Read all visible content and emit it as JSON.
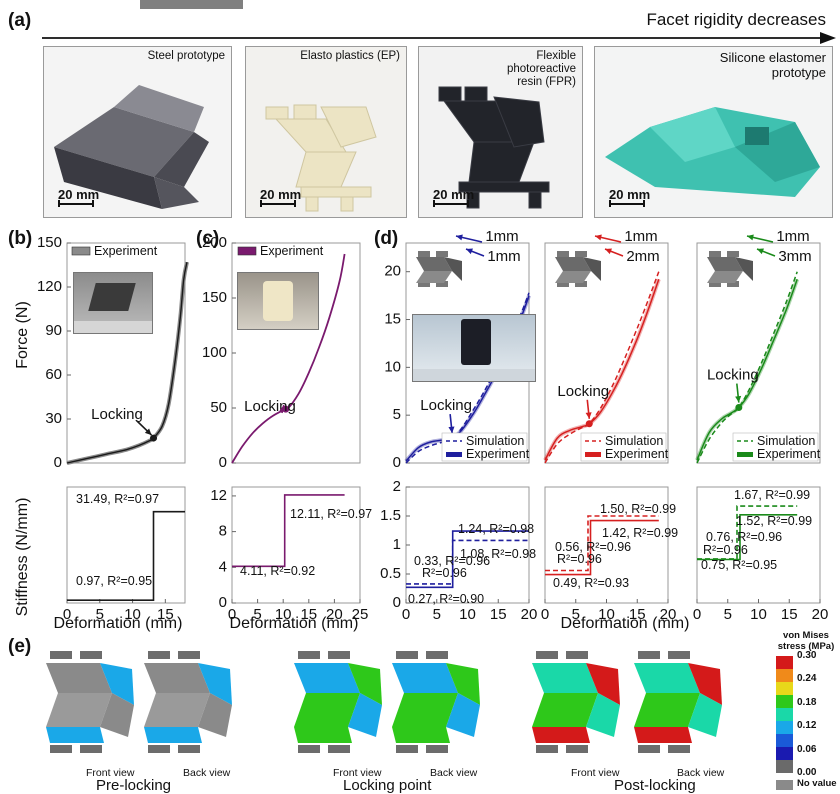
{
  "panel_labels": {
    "a": "(a)",
    "b": "(b)",
    "c": "(c)",
    "d": "(d)",
    "e": "(e)"
  },
  "arrow_caption": "Facet rigidity decreases",
  "photos": [
    {
      "caption": "Steel prototype",
      "scale": "20 mm"
    },
    {
      "caption": "Elasto plastics (EP)",
      "scale": "20 mm"
    },
    {
      "caption": "Flexible photoreactive resin (FPR)",
      "scale": "20 mm"
    },
    {
      "caption": "Silicone elastomer prototype",
      "scale": "20 mm"
    }
  ],
  "axis_titles": {
    "force": "Force (N)",
    "stiffness": "Stiffness (N/mm)",
    "deformation": "Deformation (mm)"
  },
  "legend": {
    "experiment": "Experiment",
    "simulation": "Simulation"
  },
  "annotations": {
    "locking": "Locking",
    "d1_top": "1mm",
    "d1_bot": "1mm",
    "d2_top": "1mm",
    "d2_bot": "2mm",
    "d3_top": "1mm",
    "d3_bot": "3mm"
  },
  "colors": {
    "b": "#1a1a1a",
    "c": "#7a1a6e",
    "d1": "#1f1f9e",
    "d2": "#d62020",
    "d3": "#1a8a1a"
  },
  "chart_data": [
    {
      "panel": "b-force",
      "type": "line",
      "xlim": [
        0,
        18
      ],
      "ylim": [
        0,
        150
      ],
      "yticks": [
        0,
        30,
        60,
        90,
        120,
        150
      ],
      "series": [
        {
          "name": "Experiment",
          "x": [
            0,
            3,
            6,
            9,
            11,
            12.5,
            13.2,
            14.5,
            15.5,
            16.5,
            17.3,
            17.8,
            18.3
          ],
          "y": [
            0,
            3,
            6,
            9,
            12,
            15,
            17,
            25,
            40,
            70,
            100,
            125,
            137
          ]
        }
      ],
      "locking_point": [
        13.2,
        17
      ]
    },
    {
      "panel": "b-stiffness",
      "type": "line",
      "xlim": [
        0,
        18
      ],
      "ylim": [
        0,
        40
      ],
      "series": [
        {
          "name": "Experiment",
          "x": [
            0,
            13.2,
            13.2,
            18
          ],
          "y": [
            0.97,
            0.97,
            31.49,
            31.49
          ]
        }
      ],
      "labels": [
        "31.49, R²=0.97",
        "0.97, R²=0.95"
      ]
    },
    {
      "panel": "c-force",
      "type": "line",
      "xlim": [
        0,
        25
      ],
      "ylim": [
        0,
        200
      ],
      "yticks": [
        0,
        50,
        100,
        150,
        200
      ],
      "series": [
        {
          "name": "Experiment",
          "x": [
            0,
            2,
            4,
            6,
            8,
            10,
            11,
            13,
            15,
            17,
            19,
            21,
            22
          ],
          "y": [
            0,
            15,
            27,
            36,
            43,
            48,
            50,
            63,
            82,
            105,
            132,
            165,
            190
          ]
        }
      ],
      "locking_point": [
        10.5,
        49
      ]
    },
    {
      "panel": "c-stiffness",
      "type": "line",
      "xlim": [
        0,
        25
      ],
      "ylim": [
        0,
        13
      ],
      "yticks": [
        0,
        4,
        8,
        12
      ],
      "series": [
        {
          "name": "Experiment",
          "x": [
            0,
            10.3,
            10.3,
            22
          ],
          "y": [
            4.11,
            4.11,
            12.11,
            12.11
          ]
        }
      ],
      "labels": [
        "12.11, R²=0.97",
        "4.11, R²=0.92"
      ]
    },
    {
      "panel": "d1-force",
      "type": "line",
      "xlim": [
        0,
        20
      ],
      "ylim": [
        0,
        23
      ],
      "yticks": [
        0,
        5,
        10,
        15,
        20
      ],
      "series": [
        {
          "name": "Experiment",
          "x": [
            0,
            2,
            4,
            6,
            7.5,
            9,
            11,
            13,
            15,
            17,
            19,
            20
          ],
          "y": [
            0.2,
            1.6,
            2.2,
            2.4,
            2.6,
            3.4,
            5.2,
            7.4,
            9.8,
            12.6,
            15.7,
            17.5
          ]
        },
        {
          "name": "Simulation",
          "x": [
            0,
            2,
            4,
            6,
            7.5,
            9,
            11,
            13,
            15,
            17,
            19,
            20
          ],
          "y": [
            0,
            1.2,
            1.8,
            2.2,
            2.6,
            3.6,
            5.6,
            7.8,
            10.3,
            13.1,
            16.1,
            17.8
          ]
        }
      ],
      "locking_point": [
        7.5,
        2.6
      ]
    },
    {
      "panel": "d1-stiffness",
      "type": "line",
      "xlim": [
        0,
        20
      ],
      "ylim": [
        0,
        2
      ],
      "yticks": [
        0,
        0.5,
        1,
        1.5,
        2
      ],
      "series": [
        {
          "name": "Experiment",
          "x": [
            0,
            7.6,
            7.6,
            20
          ],
          "y": [
            0.27,
            0.27,
            1.24,
            1.24
          ]
        },
        {
          "name": "Simulation",
          "x": [
            0,
            7.6,
            7.6,
            20
          ],
          "y": [
            0.33,
            0.33,
            1.08,
            1.08
          ]
        }
      ],
      "labels": [
        "1.24, R²=0.98",
        "1.08, R²=0.98",
        "0.33, R²=0.96",
        "0.27, R²=0.90"
      ]
    },
    {
      "panel": "d2-force",
      "type": "line",
      "xlim": [
        0,
        20
      ],
      "ylim": [
        0,
        23
      ],
      "series": [
        {
          "name": "Experiment",
          "x": [
            0,
            2,
            4,
            6,
            7.2,
            9,
            11,
            13,
            15,
            17,
            18.5
          ],
          "y": [
            0.3,
            2.6,
            3.4,
            3.8,
            4.1,
            5.3,
            7.4,
            10,
            13,
            16.4,
            19.2
          ]
        },
        {
          "name": "Simulation",
          "x": [
            0,
            2,
            4,
            6,
            7.2,
            9,
            11,
            13,
            15,
            17,
            18.5
          ],
          "y": [
            0,
            2,
            3,
            3.7,
            4.1,
            5.7,
            8.1,
            11,
            14.1,
            17.4,
            20
          ]
        }
      ],
      "locking_point": [
        7.2,
        4.1
      ]
    },
    {
      "panel": "d2-stiffness",
      "type": "line",
      "xlim": [
        0,
        20
      ],
      "ylim": [
        0,
        2
      ],
      "series": [
        {
          "name": "Experiment",
          "x": [
            0,
            7.4,
            7.4,
            18.5
          ],
          "y": [
            0.49,
            0.49,
            1.42,
            1.42
          ]
        },
        {
          "name": "Simulation",
          "x": [
            0,
            7,
            7,
            18.5
          ],
          "y": [
            0.56,
            0.56,
            1.5,
            1.5
          ]
        }
      ],
      "labels": [
        "1.50, R²=0.99",
        "1.42, R²=0.99",
        "0.56, R²=0.96",
        "0.49, R²=0.93"
      ]
    },
    {
      "panel": "d3-force",
      "type": "line",
      "xlim": [
        0,
        20
      ],
      "ylim": [
        0,
        23
      ],
      "series": [
        {
          "name": "Experiment",
          "x": [
            0,
            2,
            4,
            5.5,
            6.8,
            8.5,
            10.5,
            12.5,
            14.5,
            16.3
          ],
          "y": [
            0.3,
            3.2,
            4.6,
            5.2,
            5.8,
            7.3,
            9.9,
            12.9,
            16,
            19.2
          ]
        },
        {
          "name": "Simulation",
          "x": [
            0,
            2,
            4,
            5.5,
            6.8,
            8.5,
            10.5,
            12.5,
            14.5,
            16.3
          ],
          "y": [
            0,
            2.5,
            4.2,
            5.1,
            5.8,
            7.7,
            10.5,
            13.6,
            16.8,
            20
          ]
        }
      ],
      "locking_point": [
        6.8,
        5.8
      ]
    },
    {
      "panel": "d3-stiffness",
      "type": "line",
      "xlim": [
        0,
        20
      ],
      "ylim": [
        0,
        2
      ],
      "series": [
        {
          "name": "Experiment",
          "x": [
            0,
            7,
            7,
            16.3
          ],
          "y": [
            0.75,
            0.75,
            1.52,
            1.52
          ]
        },
        {
          "name": "Simulation",
          "x": [
            0,
            6.5,
            6.5,
            16.3
          ],
          "y": [
            0.76,
            0.76,
            1.67,
            1.67
          ]
        }
      ],
      "labels": [
        "1.67, R²=0.99",
        "1.52, R²=0.99",
        "0.76, R²=0.96",
        "0.75, R²=0.95"
      ]
    }
  ],
  "fea": {
    "stages": [
      "Pre-locking",
      "Locking point",
      "Post-locking"
    ],
    "views": [
      "Front view",
      "Back view",
      "Front view",
      "Back view",
      "Front view",
      "Back view"
    ],
    "colorbar": {
      "title": "von Mises stress (MPa)",
      "ticks": [
        "0.30",
        "0.24",
        "0.18",
        "0.12",
        "0.06",
        "0.00"
      ],
      "colors": [
        "#d41a1a",
        "#f08a1a",
        "#e8d81a",
        "#2ec81a",
        "#1ad8a8",
        "#1aa8e8",
        "#1a5ad8",
        "#1a1ab0",
        "#6a6a6a"
      ],
      "no_value": "No value"
    }
  }
}
